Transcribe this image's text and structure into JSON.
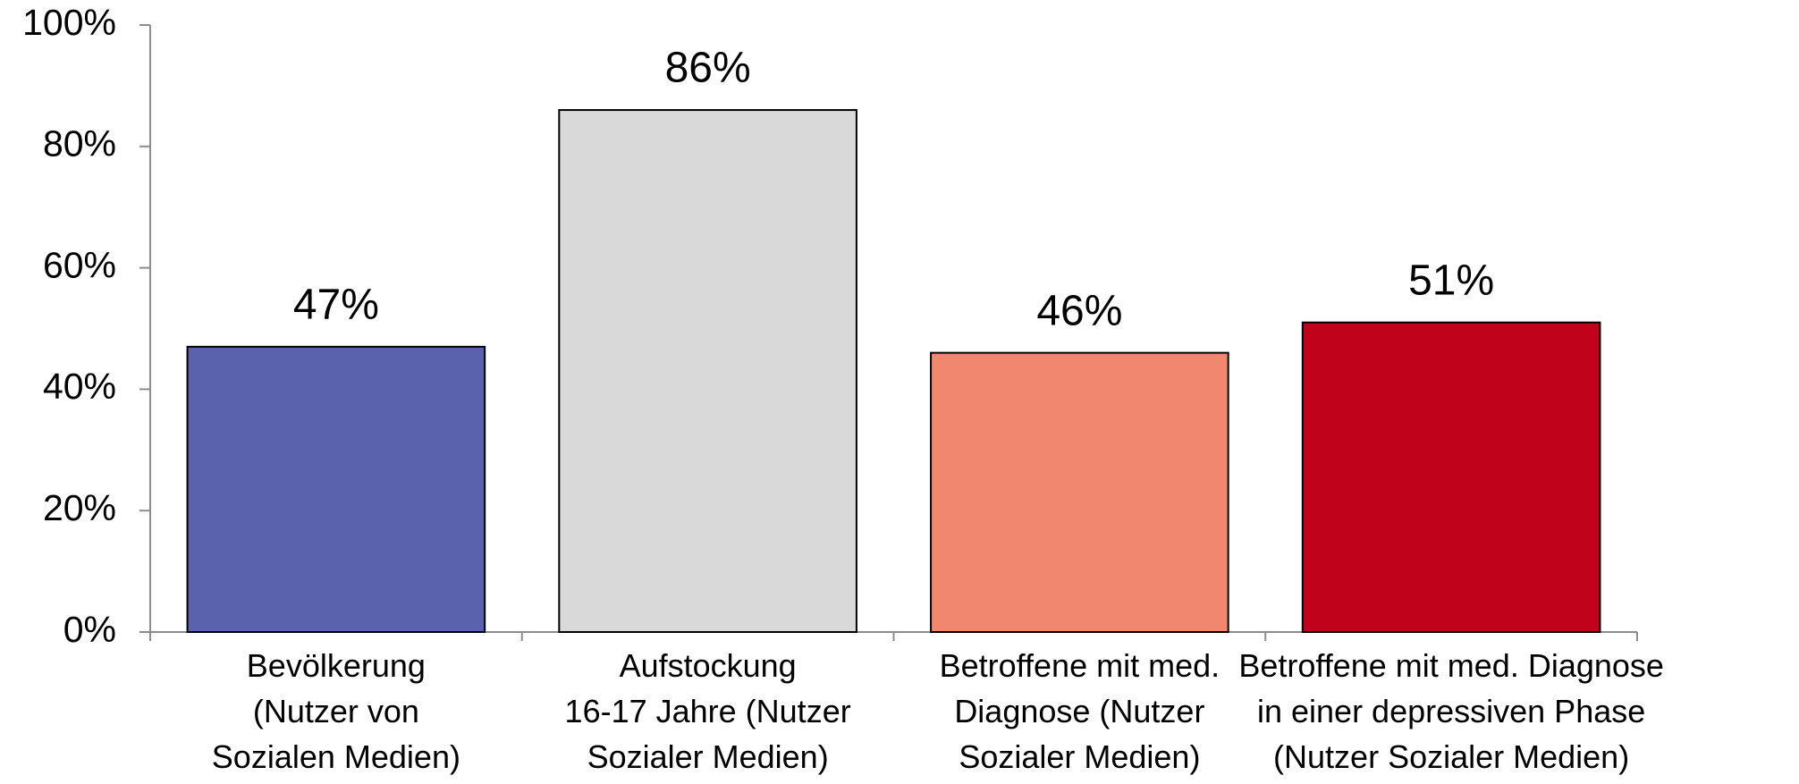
{
  "chart_data": {
    "type": "bar",
    "categories": [
      "Bevölkerung\n(Nutzer von\nSozialen Medien)",
      "Aufstockung\n16-17 Jahre (Nutzer\nSozialer Medien)",
      "Betroffene mit med.\nDiagnose (Nutzer\nSozialer Medien)",
      "Betroffene mit med. Diagnose\nin einer depressiven Phase\n(Nutzer Sozialer Medien)"
    ],
    "values": [
      47,
      86,
      46,
      51
    ],
    "value_labels": [
      "47%",
      "86%",
      "46%",
      "51%"
    ],
    "colors": [
      "#5a62ae",
      "#d9d9d9",
      "#f2876f",
      "#c0031a"
    ],
    "ylim": [
      0,
      100
    ],
    "yticks": [
      {
        "value": 0,
        "label": "0%"
      },
      {
        "value": 20,
        "label": "20%"
      },
      {
        "value": 40,
        "label": "40%"
      },
      {
        "value": 60,
        "label": "60%"
      },
      {
        "value": 80,
        "label": "80%"
      },
      {
        "value": 100,
        "label": "100%"
      }
    ],
    "grid": false
  }
}
